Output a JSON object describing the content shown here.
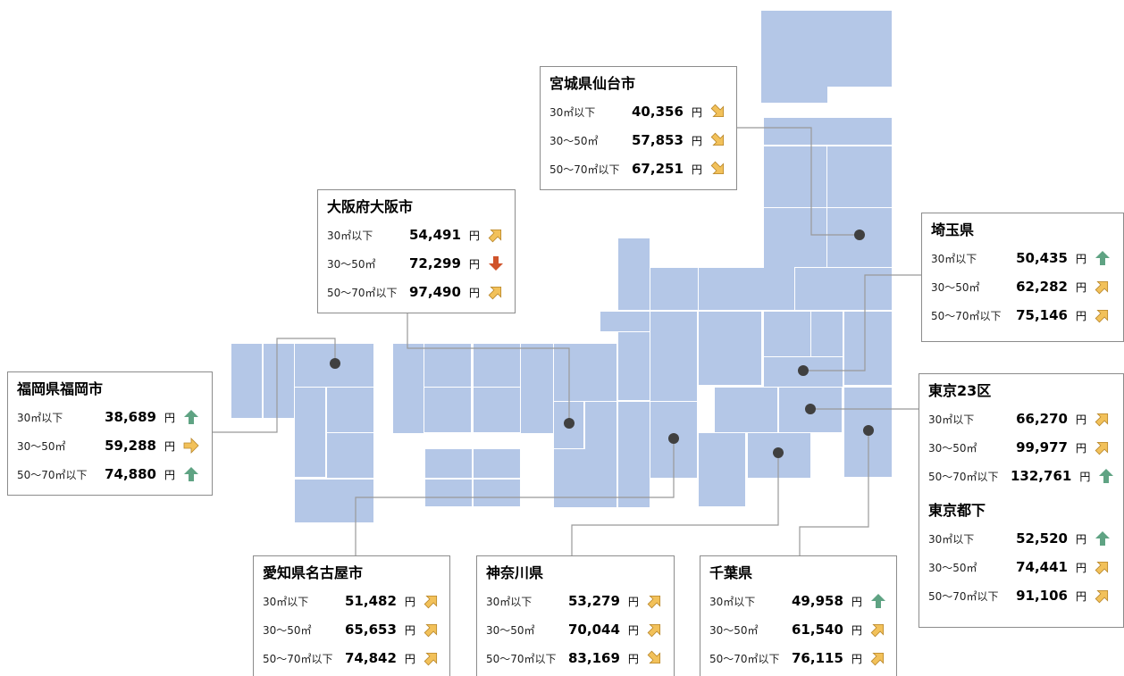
{
  "boxes": [
    {
      "sections": [
        {
          "title": "宮城県仙台市",
          "rows": [
            {
              "label": "30㎡以下",
              "value": "40,356",
              "unit": "円",
              "trend": "down-right"
            },
            {
              "label": "30～50㎡",
              "value": "57,853",
              "unit": "円",
              "trend": "down-right"
            },
            {
              "label": "50～70㎡以下",
              "value": "67,251",
              "unit": "円",
              "trend": "down-right"
            }
          ]
        }
      ]
    },
    {
      "sections": [
        {
          "title": "大阪府大阪市",
          "rows": [
            {
              "label": "30㎡以下",
              "value": "54,491",
              "unit": "円",
              "trend": "up-right"
            },
            {
              "label": "30～50㎡",
              "value": "72,299",
              "unit": "円",
              "trend": "down"
            },
            {
              "label": "50～70㎡以下",
              "value": "97,490",
              "unit": "円",
              "trend": "up-right"
            }
          ]
        }
      ]
    },
    {
      "sections": [
        {
          "title": "埼玉県",
          "rows": [
            {
              "label": "30㎡以下",
              "value": "50,435",
              "unit": "円",
              "trend": "up"
            },
            {
              "label": "30～50㎡",
              "value": "62,282",
              "unit": "円",
              "trend": "up-right"
            },
            {
              "label": "50～70㎡以下",
              "value": "75,146",
              "unit": "円",
              "trend": "up-right"
            }
          ]
        }
      ]
    },
    {
      "sections": [
        {
          "title": "福岡県福岡市",
          "rows": [
            {
              "label": "30㎡以下",
              "value": "38,689",
              "unit": "円",
              "trend": "up"
            },
            {
              "label": "30～50㎡",
              "value": "59,288",
              "unit": "円",
              "trend": "right"
            },
            {
              "label": "50～70㎡以下",
              "value": "74,880",
              "unit": "円",
              "trend": "up"
            }
          ]
        }
      ]
    },
    {
      "sections": [
        {
          "title": "東京23区",
          "rows": [
            {
              "label": "30㎡以下",
              "value": "66,270",
              "unit": "円",
              "trend": "up-right"
            },
            {
              "label": "30～50㎡",
              "value": "99,977",
              "unit": "円",
              "trend": "up-right"
            },
            {
              "label": "50～70㎡以下",
              "value": "132,761",
              "unit": "円",
              "trend": "up"
            }
          ]
        },
        {
          "title": "東京都下",
          "rows": [
            {
              "label": "30㎡以下",
              "value": "52,520",
              "unit": "円",
              "trend": "up"
            },
            {
              "label": "30～50㎡",
              "value": "74,441",
              "unit": "円",
              "trend": "up-right"
            },
            {
              "label": "50～70㎡以下",
              "value": "91,106",
              "unit": "円",
              "trend": "up-right"
            }
          ]
        }
      ]
    },
    {
      "sections": [
        {
          "title": "愛知県名古屋市",
          "rows": [
            {
              "label": "30㎡以下",
              "value": "51,482",
              "unit": "円",
              "trend": "up-right"
            },
            {
              "label": "30～50㎡",
              "value": "65,653",
              "unit": "円",
              "trend": "up-right"
            },
            {
              "label": "50～70㎡以下",
              "value": "74,842",
              "unit": "円",
              "trend": "up-right"
            }
          ]
        }
      ]
    },
    {
      "sections": [
        {
          "title": "神奈川県",
          "rows": [
            {
              "label": "30㎡以下",
              "value": "53,279",
              "unit": "円",
              "trend": "up-right"
            },
            {
              "label": "30～50㎡",
              "value": "70,044",
              "unit": "円",
              "trend": "up-right"
            },
            {
              "label": "50～70㎡以下",
              "value": "83,169",
              "unit": "円",
              "trend": "down-right"
            }
          ]
        }
      ]
    },
    {
      "sections": [
        {
          "title": "千葉県",
          "rows": [
            {
              "label": "30㎡以下",
              "value": "49,958",
              "unit": "円",
              "trend": "up"
            },
            {
              "label": "30～50㎡",
              "value": "61,540",
              "unit": "円",
              "trend": "up-right"
            },
            {
              "label": "50～70㎡以下",
              "value": "76,115",
              "unit": "円",
              "trend": "up-right"
            }
          ]
        }
      ]
    }
  ]
}
